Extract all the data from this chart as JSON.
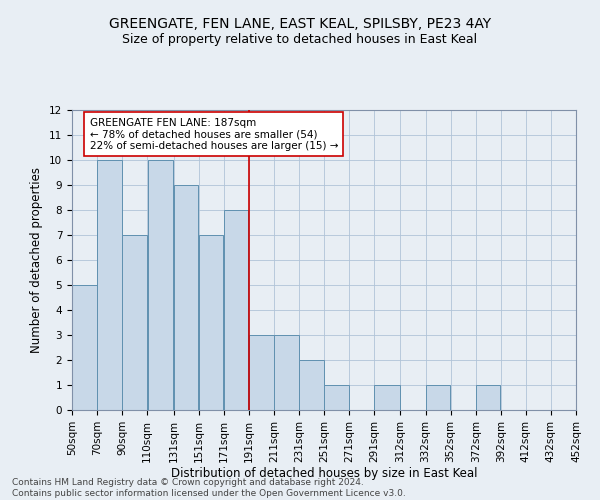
{
  "title": "GREENGATE, FEN LANE, EAST KEAL, SPILSBY, PE23 4AY",
  "subtitle": "Size of property relative to detached houses in East Keal",
  "xlabel": "Distribution of detached houses by size in East Keal",
  "ylabel": "Number of detached properties",
  "annotation_line1": "GREENGATE FEN LANE: 187sqm",
  "annotation_line2": "← 78% of detached houses are smaller (54)",
  "annotation_line3": "22% of semi-detached houses are larger (15) →",
  "footer_line1": "Contains HM Land Registry data © Crown copyright and database right 2024.",
  "footer_line2": "Contains public sector information licensed under the Open Government Licence v3.0.",
  "bar_edges": [
    50,
    70,
    90,
    110,
    131,
    151,
    171,
    191,
    211,
    231,
    251,
    271,
    291,
    312,
    332,
    352,
    372,
    392,
    412,
    432,
    452
  ],
  "bar_heights": [
    5,
    10,
    7,
    10,
    9,
    7,
    8,
    3,
    3,
    2,
    1,
    0,
    1,
    0,
    1,
    0,
    1,
    0,
    0,
    0
  ],
  "bar_color": "#c8d8e8",
  "bar_edgecolor": "#6090b0",
  "reference_x": 191,
  "reference_line_color": "#cc0000",
  "ylim": [
    0,
    12
  ],
  "yticks": [
    0,
    1,
    2,
    3,
    4,
    5,
    6,
    7,
    8,
    9,
    10,
    11,
    12
  ],
  "xlim": [
    50,
    452
  ],
  "annotation_box_edgecolor": "#cc0000",
  "annotation_box_facecolor": "#ffffff",
  "fig_bg_color": "#e8eef4",
  "title_fontsize": 10,
  "subtitle_fontsize": 9,
  "xlabel_fontsize": 8.5,
  "ylabel_fontsize": 8.5,
  "tick_fontsize": 7.5,
  "annotation_fontsize": 7.5,
  "footer_fontsize": 6.5
}
